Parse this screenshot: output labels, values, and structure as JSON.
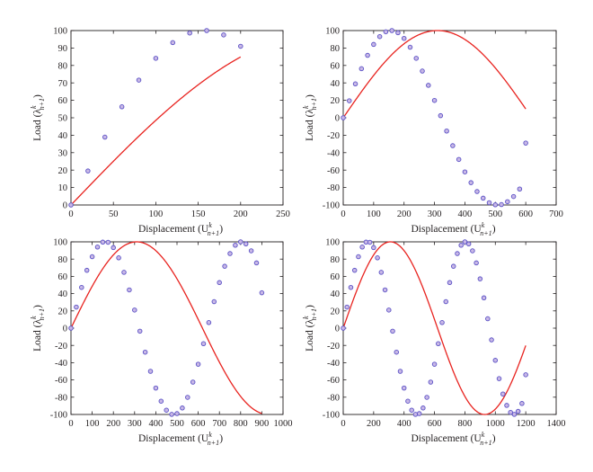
{
  "chart_data": [
    {
      "type": "line",
      "xlabel": "Displacement (U",
      "ylabel": "Load (λ",
      "label_sup": "k",
      "label_sub": "n+1",
      "xlim": [
        0,
        250
      ],
      "ylim": [
        0,
        100
      ],
      "xticks": [
        0,
        50,
        100,
        150,
        200,
        250
      ],
      "yticks": [
        0,
        10,
        20,
        30,
        40,
        50,
        60,
        70,
        80,
        90,
        100
      ],
      "grid": false,
      "line_color": "#e8231f",
      "marker_edge": "#5b52c6",
      "marker_fill": "#c9b8e6",
      "curve_end_x": 200,
      "marker_x": [
        0,
        20,
        40,
        60,
        80,
        100,
        120,
        140,
        160,
        180,
        200
      ],
      "marker_y": [
        0,
        19.5,
        38.9,
        56.3,
        71.6,
        84.1,
        93.1,
        98.6,
        100,
        97.5,
        91.0
      ]
    },
    {
      "type": "line",
      "xlabel": "Displacement (U",
      "ylabel": "Load (λ",
      "label_sup": "k",
      "label_sub": "n+1",
      "xlim": [
        0,
        700
      ],
      "ylim": [
        -100,
        100
      ],
      "xticks": [
        0,
        100,
        200,
        300,
        400,
        500,
        600,
        700
      ],
      "yticks": [
        -100,
        -80,
        -60,
        -40,
        -20,
        0,
        20,
        40,
        60,
        80,
        100
      ],
      "grid": false,
      "line_color": "#e8231f",
      "marker_edge": "#5b52c6",
      "marker_fill": "#c9b8e6",
      "curve_end_x": 600,
      "marker_x": [
        0,
        20,
        40,
        60,
        80,
        100,
        120,
        140,
        160,
        180,
        200,
        220,
        240,
        260,
        280,
        300,
        320,
        340,
        360,
        380,
        400,
        420,
        440,
        460,
        480,
        500,
        520,
        540,
        560,
        580,
        600
      ],
      "marker_y": [
        0,
        19.5,
        38.9,
        56.3,
        71.6,
        84.1,
        93.1,
        98.6,
        100,
        97.5,
        91.0,
        80.9,
        68.2,
        53.6,
        37.2,
        19.9,
        2.4,
        -15.2,
        -32.0,
        -47.8,
        -62.1,
        -74.4,
        -84.6,
        -92.2,
        -97.4,
        -99.8,
        -99.5,
        -96.2,
        -90.3,
        -81.7,
        -29.0
      ]
    },
    {
      "type": "line",
      "xlabel": "Displacement (U",
      "ylabel": "Load (λ",
      "label_sup": "k",
      "label_sub": "n+1",
      "xlim": [
        0,
        1000
      ],
      "ylim": [
        -100,
        100
      ],
      "xticks": [
        0,
        100,
        200,
        300,
        400,
        500,
        600,
        700,
        800,
        900,
        1000
      ],
      "yticks": [
        -100,
        -80,
        -60,
        -40,
        -20,
        0,
        20,
        40,
        60,
        80,
        100
      ],
      "grid": false,
      "line_color": "#e8231f",
      "marker_edge": "#5b52c6",
      "marker_fill": "#c9b8e6",
      "curve_end_x": 900,
      "marker_x": [
        0,
        25,
        50,
        75,
        100,
        125,
        150,
        175,
        200,
        225,
        250,
        275,
        300,
        325,
        350,
        375,
        400,
        425,
        450,
        475,
        500,
        525,
        550,
        575,
        600,
        625,
        650,
        675,
        700,
        725,
        750,
        775,
        800,
        825,
        850,
        875,
        900
      ],
      "marker_y": [
        0,
        24.4,
        47.2,
        67.0,
        82.8,
        94.0,
        99.7,
        99.5,
        93.3,
        81.5,
        64.7,
        44.3,
        21.0,
        -3.5,
        -27.8,
        -50.0,
        -69.4,
        -84.6,
        -95.0,
        -99.9,
        -99.0,
        -92.5,
        -80.2,
        -62.5,
        -41.8,
        -18.0,
        6.5,
        30.7,
        52.8,
        71.7,
        86.4,
        96.1,
        100,
        97.6,
        89.6,
        75.6,
        41.0
      ]
    },
    {
      "type": "line",
      "xlabel": "Displacement (U",
      "ylabel": "Load (λ",
      "label_sup": "k",
      "label_sub": "n+1",
      "xlim": [
        0,
        1400
      ],
      "ylim": [
        -100,
        100
      ],
      "xticks": [
        0,
        200,
        400,
        600,
        800,
        1000,
        1200,
        1400
      ],
      "yticks": [
        -100,
        -80,
        -60,
        -40,
        -20,
        0,
        20,
        40,
        60,
        80,
        100
      ],
      "grid": false,
      "line_color": "#e8231f",
      "marker_edge": "#5b52c6",
      "marker_fill": "#c9b8e6",
      "curve_end_x": 1200,
      "marker_x": [
        0,
        25,
        50,
        75,
        100,
        125,
        150,
        175,
        200,
        225,
        250,
        275,
        300,
        325,
        350,
        375,
        400,
        425,
        450,
        475,
        500,
        525,
        550,
        575,
        600,
        625,
        650,
        675,
        700,
        725,
        750,
        775,
        800,
        825,
        850,
        875,
        900,
        925,
        950,
        975,
        1000,
        1025,
        1050,
        1075,
        1100,
        1125,
        1150,
        1175,
        1200
      ],
      "marker_y": [
        0,
        24.4,
        47.2,
        67.0,
        82.8,
        94.0,
        99.7,
        99.5,
        93.3,
        81.5,
        64.7,
        44.3,
        21.0,
        -3.5,
        -27.8,
        -50.0,
        -69.4,
        -84.6,
        -95.0,
        -99.9,
        -99.0,
        -92.5,
        -80.2,
        -62.5,
        -41.8,
        -18.0,
        6.5,
        30.7,
        52.8,
        71.7,
        86.4,
        96.1,
        100,
        97.6,
        89.6,
        75.6,
        57.1,
        35.1,
        10.9,
        -13.6,
        -37.3,
        -58.5,
        -76.3,
        -89.5,
        -97.6,
        -99.9,
        -96.4,
        -87.3,
        -54.0
      ]
    }
  ]
}
